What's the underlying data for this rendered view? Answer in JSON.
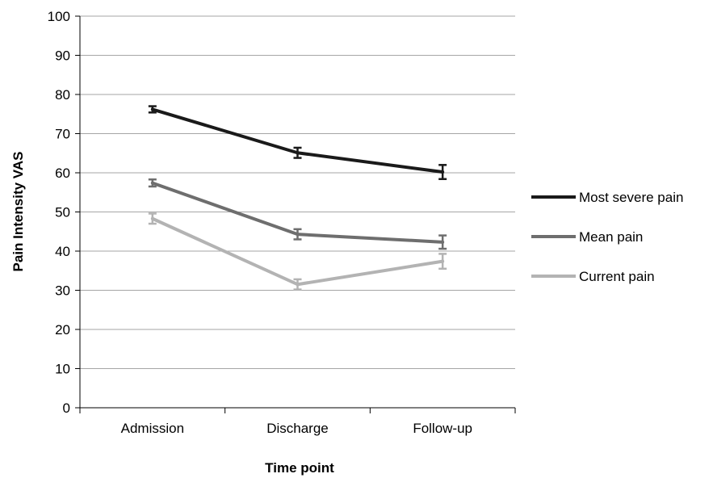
{
  "chart_data": {
    "type": "line",
    "title": "",
    "xlabel": "Time point",
    "ylabel": "Pain Intensity VAS",
    "categories": [
      "Admission",
      "Discharge",
      "Follow-up"
    ],
    "ylim": [
      0,
      100
    ],
    "yticks": [
      0,
      10,
      20,
      30,
      40,
      50,
      60,
      70,
      80,
      90,
      100
    ],
    "grid": true,
    "legend_position": "right",
    "series": [
      {
        "name": "Most severe pain",
        "color": "#1a1a1a",
        "values": [
          76.2,
          65.1,
          60.2
        ],
        "errors": [
          0.8,
          1.3,
          1.8
        ]
      },
      {
        "name": "Mean pain",
        "color": "#6e6e6e",
        "values": [
          57.4,
          44.3,
          42.3
        ],
        "errors": [
          0.9,
          1.3,
          1.7
        ]
      },
      {
        "name": "Current pain",
        "color": "#b3b3b3",
        "values": [
          48.3,
          31.5,
          37.4
        ],
        "errors": [
          1.3,
          1.3,
          1.9
        ]
      }
    ]
  }
}
